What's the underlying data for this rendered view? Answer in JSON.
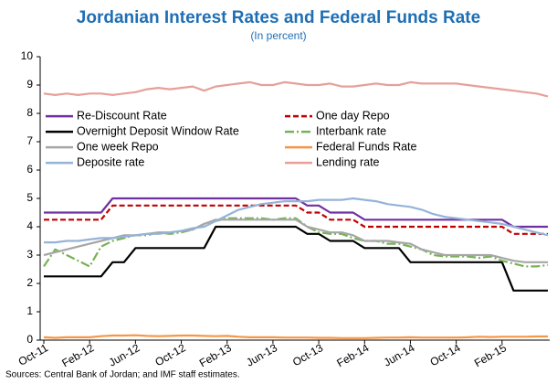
{
  "chart_data": {
    "type": "line",
    "title": "Jordanian Interest Rates and Federal Funds Rate",
    "subtitle": "(In percent)",
    "source": "Sources: Central Bank of Jordan; and IMF staff estimates.",
    "categories": [
      "Oct-11",
      null,
      null,
      null,
      "Feb-12",
      null,
      null,
      null,
      "Jun-12",
      null,
      null,
      null,
      "Oct-12",
      null,
      null,
      null,
      "Feb-13",
      null,
      null,
      null,
      "Jun-13",
      null,
      null,
      null,
      "Oct-13",
      null,
      null,
      null,
      "Feb-14",
      null,
      null,
      null,
      "Jun-14",
      null,
      null,
      null,
      "Oct-14",
      null,
      null,
      null,
      "Feb-15",
      null,
      null,
      null,
      null
    ],
    "ylim": [
      0,
      10
    ],
    "yticks": [
      0,
      1,
      2,
      3,
      4,
      5,
      6,
      7,
      8,
      9,
      10
    ],
    "grid": false,
    "legend": "top-left",
    "series": [
      {
        "name": "Re-Discount Rate",
        "color": "#7030a0",
        "line_style": "solid",
        "values": [
          4.5,
          4.5,
          4.5,
          4.5,
          4.5,
          4.5,
          5,
          5,
          5,
          5,
          5,
          5,
          5,
          5,
          5,
          5,
          5,
          5,
          5,
          5,
          5,
          5,
          5,
          4.75,
          4.75,
          4.5,
          4.5,
          4.5,
          4.25,
          4.25,
          4.25,
          4.25,
          4.25,
          4.25,
          4.25,
          4.25,
          4.25,
          4.25,
          4.25,
          4.25,
          4.25,
          4,
          4,
          4,
          4
        ]
      },
      {
        "name": "One day Repo",
        "color": "#c00000",
        "line_style": "dashed",
        "values": [
          4.25,
          4.25,
          4.25,
          4.25,
          4.25,
          4.25,
          4.75,
          4.75,
          4.75,
          4.75,
          4.75,
          4.75,
          4.75,
          4.75,
          4.75,
          4.75,
          4.75,
          4.75,
          4.75,
          4.75,
          4.75,
          4.75,
          4.75,
          4.5,
          4.5,
          4.25,
          4.25,
          4.25,
          4,
          4,
          4,
          4,
          4,
          4,
          4,
          4,
          4,
          4,
          4,
          4,
          4,
          3.75,
          3.75,
          3.75,
          3.75
        ]
      },
      {
        "name": "Overnight Deposit Window Rate",
        "color": "#000000",
        "line_style": "solid",
        "values": [
          2.25,
          2.25,
          2.25,
          2.25,
          2.25,
          2.25,
          2.75,
          2.75,
          3.25,
          3.25,
          3.25,
          3.25,
          3.25,
          3.25,
          3.25,
          4,
          4,
          4,
          4,
          4,
          4,
          4,
          4,
          3.75,
          3.75,
          3.5,
          3.5,
          3.5,
          3.25,
          3.25,
          3.25,
          3.25,
          2.75,
          2.75,
          2.75,
          2.75,
          2.75,
          2.75,
          2.75,
          2.75,
          2.75,
          1.75,
          1.75,
          1.75,
          1.75
        ]
      },
      {
        "name": "Interbank rate",
        "color": "#77b255",
        "line_style": "dashdot",
        "values": [
          2.6,
          3.2,
          3.0,
          2.8,
          2.6,
          3.3,
          3.5,
          3.6,
          3.7,
          3.7,
          3.8,
          3.75,
          3.8,
          3.9,
          4.1,
          4.2,
          4.3,
          4.3,
          4.3,
          4.3,
          4.25,
          4.3,
          4.3,
          4.0,
          3.8,
          3.75,
          3.75,
          3.6,
          3.5,
          3.5,
          3.4,
          3.4,
          3.3,
          3.2,
          3.0,
          2.95,
          2.95,
          2.95,
          2.9,
          2.95,
          2.8,
          2.7,
          2.6,
          2.6,
          2.65
        ]
      },
      {
        "name": "One week Repo",
        "color": "#a6a6a6",
        "line_style": "solid",
        "values": [
          3.0,
          3.1,
          3.2,
          3.3,
          3.4,
          3.5,
          3.6,
          3.7,
          3.7,
          3.75,
          3.8,
          3.8,
          3.85,
          3.9,
          4.1,
          4.25,
          4.25,
          4.25,
          4.25,
          4.25,
          4.25,
          4.25,
          4.25,
          4.0,
          3.9,
          3.8,
          3.8,
          3.7,
          3.5,
          3.5,
          3.5,
          3.45,
          3.4,
          3.2,
          3.1,
          3.0,
          3.0,
          3.0,
          3.0,
          3.0,
          2.9,
          2.8,
          2.75,
          2.75,
          2.75
        ]
      },
      {
        "name": "Federal Funds Rate",
        "color": "#f79646",
        "line_style": "solid",
        "values": [
          0.1,
          0.08,
          0.1,
          0.1,
          0.1,
          0.14,
          0.16,
          0.16,
          0.17,
          0.15,
          0.14,
          0.15,
          0.16,
          0.16,
          0.15,
          0.14,
          0.15,
          0.12,
          0.1,
          0.1,
          0.1,
          0.09,
          0.09,
          0.09,
          0.08,
          0.08,
          0.07,
          0.07,
          0.07,
          0.08,
          0.09,
          0.09,
          0.1,
          0.09,
          0.09,
          0.09,
          0.09,
          0.1,
          0.12,
          0.11,
          0.12,
          0.12,
          0.12,
          0.13,
          0.13
        ]
      },
      {
        "name": "Deposite rate",
        "color": "#95b3d7",
        "line_style": "solid",
        "values": [
          3.45,
          3.45,
          3.5,
          3.5,
          3.55,
          3.6,
          3.6,
          3.65,
          3.7,
          3.75,
          3.75,
          3.8,
          3.85,
          3.95,
          4.0,
          4.2,
          4.4,
          4.6,
          4.7,
          4.8,
          4.85,
          4.9,
          4.9,
          4.9,
          4.95,
          4.95,
          4.95,
          5.0,
          4.95,
          4.9,
          4.8,
          4.75,
          4.7,
          4.6,
          4.45,
          4.35,
          4.3,
          4.25,
          4.2,
          4.15,
          4.1,
          4.0,
          3.9,
          3.8,
          3.7
        ]
      },
      {
        "name": "Lending rate",
        "color": "#e6a09a",
        "line_style": "solid",
        "values": [
          8.7,
          8.65,
          8.7,
          8.65,
          8.7,
          8.7,
          8.65,
          8.7,
          8.75,
          8.85,
          8.9,
          8.85,
          8.9,
          8.95,
          8.8,
          8.95,
          9.0,
          9.05,
          9.1,
          9.0,
          9.0,
          9.1,
          9.05,
          9.0,
          9.0,
          9.05,
          8.95,
          8.95,
          9.0,
          9.05,
          9.0,
          9.0,
          9.1,
          9.05,
          9.05,
          9.05,
          9.05,
          9.0,
          8.95,
          8.9,
          8.85,
          8.8,
          8.75,
          8.7,
          8.6
        ]
      }
    ]
  }
}
